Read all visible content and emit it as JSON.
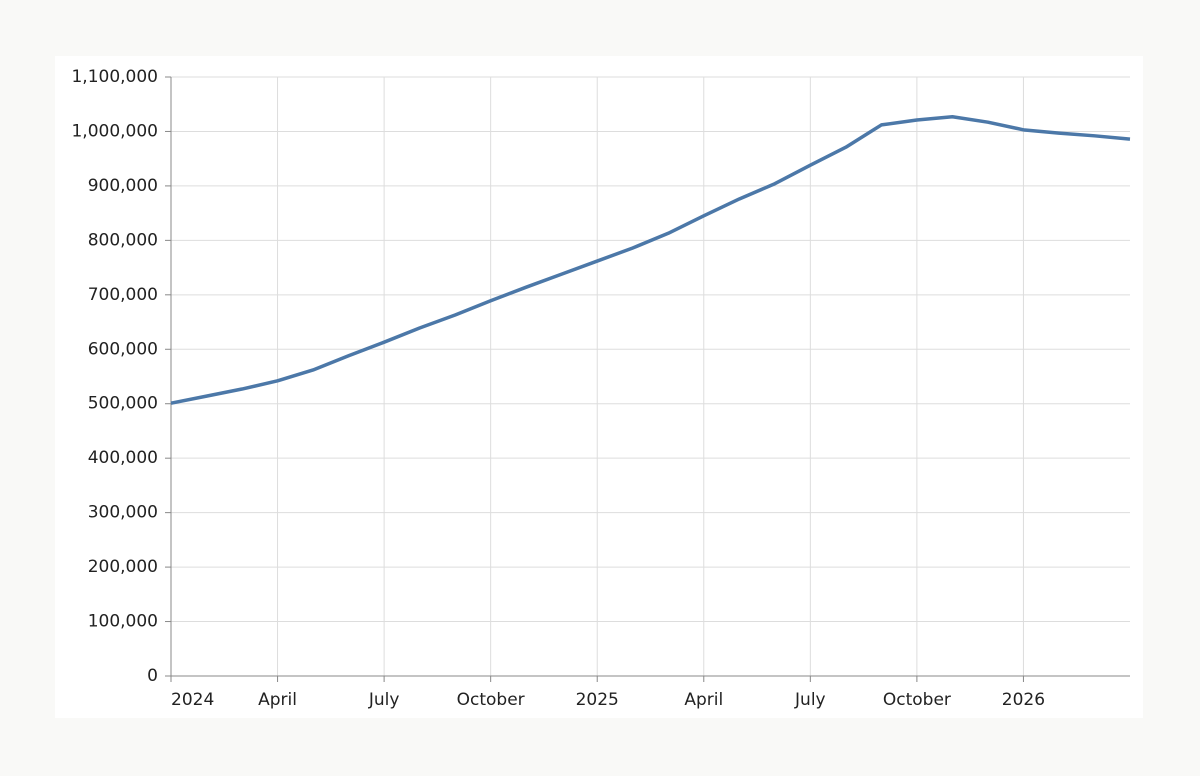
{
  "chart_data": {
    "type": "line",
    "x": [
      "2024-01",
      "2024-02",
      "2024-03",
      "2024-04",
      "2024-05",
      "2024-06",
      "2024-07",
      "2024-08",
      "2024-09",
      "2024-10",
      "2024-11",
      "2024-12",
      "2025-01",
      "2025-02",
      "2025-03",
      "2025-04",
      "2025-05",
      "2025-06",
      "2025-07",
      "2025-08",
      "2025-09",
      "2025-10",
      "2025-11",
      "2025-12",
      "2026-01",
      "2026-02",
      "2026-03",
      "2026-04"
    ],
    "series": [
      {
        "color": "#4c78a8",
        "values": [
          501000,
          514000,
          527000,
          542000,
          562000,
          588000,
          613000,
          639000,
          663000,
          689000,
          714000,
          738000,
          762000,
          786000,
          813000,
          845000,
          876000,
          904000,
          938000,
          971000,
          1012000,
          1021000,
          1027000,
          1017000,
          1003000,
          997000,
          992000,
          986000
        ]
      }
    ],
    "xlim": [
      "2024-01",
      "2026-04"
    ],
    "xticks": [
      {
        "value": "2024-01",
        "label": "2024"
      },
      {
        "value": "2024-04",
        "label": "April"
      },
      {
        "value": "2024-07",
        "label": "July"
      },
      {
        "value": "2024-10",
        "label": "October"
      },
      {
        "value": "2025-01",
        "label": "2025"
      },
      {
        "value": "2025-04",
        "label": "April"
      },
      {
        "value": "2025-07",
        "label": "July"
      },
      {
        "value": "2025-10",
        "label": "October"
      },
      {
        "value": "2026-01",
        "label": "2026"
      }
    ],
    "ylim": [
      0,
      1100000
    ],
    "yticks": [
      0,
      {
        "value": 100000,
        "label": "100,000"
      },
      {
        "value": 200000,
        "label": "200,000"
      },
      {
        "value": 300000,
        "label": "300,000"
      },
      {
        "value": 400000,
        "label": "400,000"
      },
      {
        "value": 500000,
        "label": "500,000"
      },
      {
        "value": 600000,
        "label": "600,000"
      },
      {
        "value": 700000,
        "label": "700,000"
      },
      {
        "value": 800000,
        "label": "800,000"
      },
      {
        "value": 900000,
        "label": "900,000"
      },
      {
        "value": 1000000,
        "label": "1,000,000"
      },
      {
        "value": 1100000,
        "label": "1,100,000"
      }
    ],
    "grid": true
  }
}
